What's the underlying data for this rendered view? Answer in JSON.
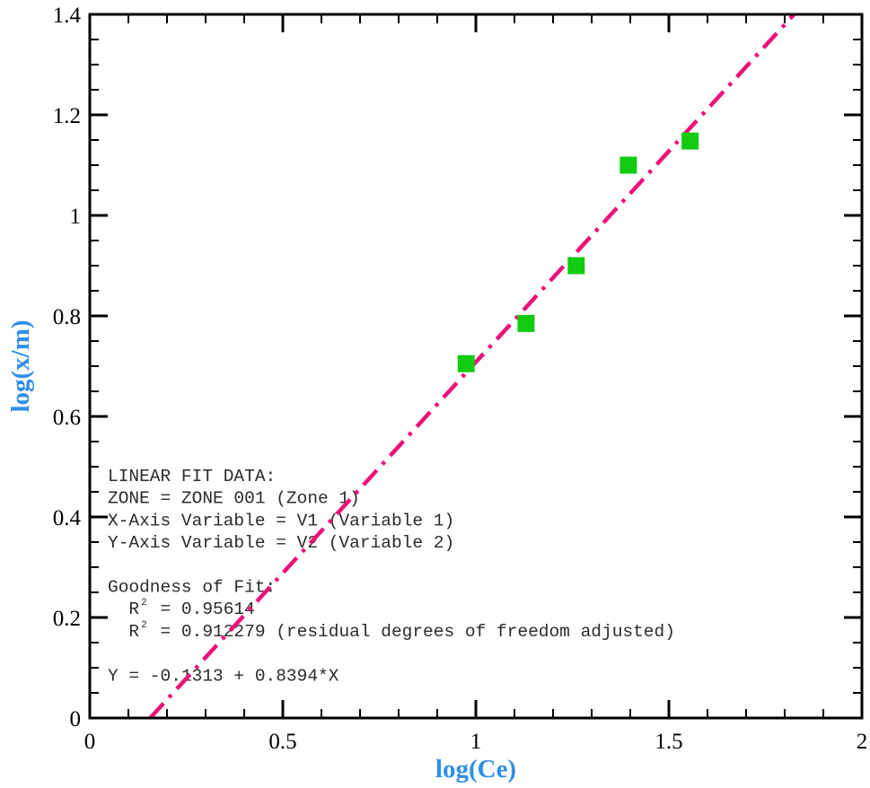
{
  "chart_data": {
    "type": "scatter",
    "xlabel": "log(Ce)",
    "ylabel": "log(x/m)",
    "xlim": [
      0,
      2
    ],
    "ylim": [
      0,
      1.4
    ],
    "x_ticks": [
      "0",
      "0.5",
      "1",
      "1.5",
      "2"
    ],
    "y_ticks": [
      "0",
      "0.2",
      "0.4",
      "0.6",
      "0.8",
      "1",
      "1.2",
      "1.4"
    ],
    "x_tick_values": [
      0,
      0.5,
      1,
      1.5,
      2
    ],
    "y_tick_values": [
      0,
      0.2,
      0.4,
      0.6,
      0.8,
      1,
      1.2,
      1.4
    ],
    "x_minor_step": 0.1,
    "y_minor_step": 0.05,
    "grid": false,
    "series": [
      {
        "marker": "square",
        "color": "#11cc11",
        "points": [
          {
            "x": 0.975,
            "y": 0.705
          },
          {
            "x": 1.13,
            "y": 0.785
          },
          {
            "x": 1.26,
            "y": 0.9
          },
          {
            "x": 1.395,
            "y": 1.1
          },
          {
            "x": 1.555,
            "y": 1.148
          }
        ]
      }
    ],
    "fit_line": {
      "intercept": -0.1313,
      "slope": 0.8394,
      "style": "dash-dot",
      "color": "#ee1177"
    },
    "annotation": {
      "lines": [
        "LINEAR FIT DATA:",
        "ZONE = ZONE 001 (Zone 1)",
        "X-Axis Variable = V1 (Variable 1)",
        "Y-Axis Variable = V2 (Variable 2)",
        "",
        "Goodness of Fit:",
        "  R  = 0.95614",
        "  R  = 0.912279 (residual degrees of freedom adjusted)",
        "",
        "Y = -0.1313 + 0.8394*X"
      ],
      "superscript": "2"
    }
  }
}
